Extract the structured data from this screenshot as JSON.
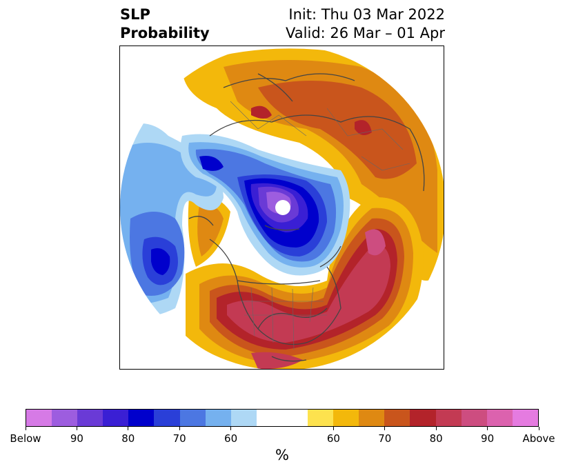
{
  "title": {
    "left_line1": "SLP",
    "left_line2": "Probability",
    "right_line1": "Init: Thu 03 Mar 2022",
    "right_line2": "Valid: 26 Mar – 01 Apr"
  },
  "colorbar": {
    "colors": [
      "#d67ae6",
      "#9d5ddf",
      "#6a3ad6",
      "#3a1fd4",
      "#0000cc",
      "#2a3fd8",
      "#4c77e2",
      "#75b1ef",
      "#aed8f5",
      "#ffffff",
      "#ffffff",
      "#fde24e",
      "#f3b80b",
      "#df8912",
      "#c9551c",
      "#b3232a",
      "#c33a53",
      "#cd4d80",
      "#dc62ae",
      "#e57be0"
    ],
    "labels": [
      "Below",
      "90",
      "80",
      "70",
      "60",
      "60",
      "70",
      "80",
      "90",
      "Above"
    ],
    "unit": "%"
  },
  "map": {
    "projection": "north polar stereographic",
    "field": "sea level pressure tercile probability"
  }
}
